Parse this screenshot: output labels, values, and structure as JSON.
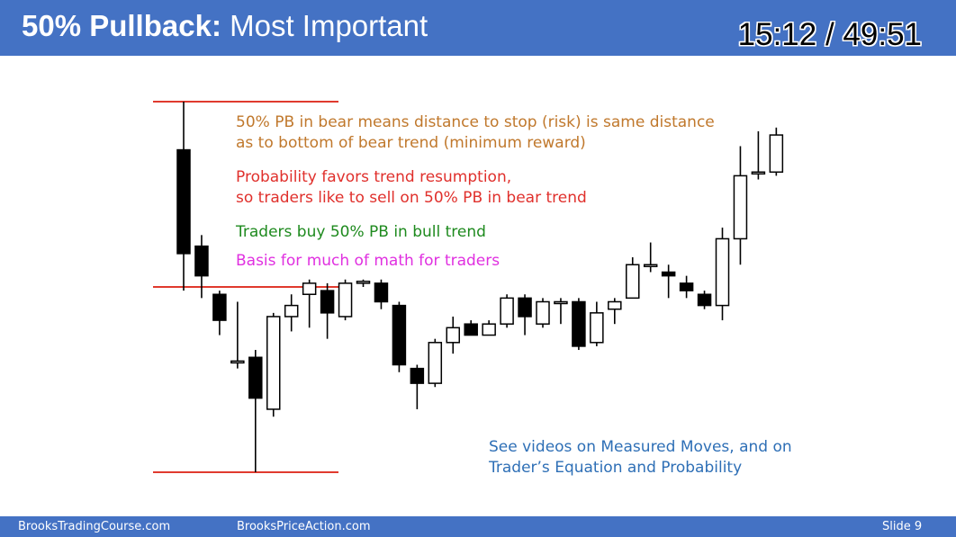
{
  "slide": {
    "title_bold": "50% Pullback:",
    "title_rest": " Most Important",
    "timer": "15:12 / 49:51",
    "notes": {
      "risk_line1": "50% PB in bear means distance to stop (risk) is same distance",
      "risk_line2": "as to bottom of bear trend (minimum reward)",
      "prob_line1": "Probability favors trend resumption,",
      "prob_line2": "so traders like to sell on 50% PB in bear trend",
      "bull_line": "Traders buy 50% PB in bull trend",
      "math_line": "Basis for much of math for traders",
      "videos_line1": "See videos on Measured Moves, and on",
      "videos_line2": "Trader’s Equation and Probability"
    }
  },
  "footer": {
    "left": "BrooksTradingCourse.com",
    "center": "BrooksPriceAction.com",
    "slide_number": "Slide  9"
  },
  "colors": {
    "accent_blue": "#4472c4",
    "level_line": "#e03a2e",
    "risk_text": "#c0782c",
    "prob_text": "#e0302c",
    "bull_text": "#1e8a1e",
    "math_text": "#e030e0",
    "videos_text": "#2e6fb6"
  },
  "chart_data": {
    "type": "candlestick",
    "horizontal_levels": [
      {
        "label": "",
        "value": 100
      },
      {
        "label": "",
        "value": 50
      },
      {
        "label": "",
        "value": 0
      }
    ],
    "candles": [
      {
        "o": 87,
        "h": 100,
        "l": 49,
        "c": 59
      },
      {
        "o": 61,
        "h": 64,
        "l": 47,
        "c": 53
      },
      {
        "o": 48,
        "h": 49,
        "l": 37,
        "c": 41
      },
      {
        "o": 30,
        "h": 46,
        "l": 28,
        "c": 30
      },
      {
        "o": 31,
        "h": 33,
        "l": 0,
        "c": 20
      },
      {
        "o": 17,
        "h": 43,
        "l": 15,
        "c": 42
      },
      {
        "o": 42,
        "h": 48,
        "l": 38,
        "c": 45
      },
      {
        "o": 48,
        "h": 52,
        "l": 39,
        "c": 51
      },
      {
        "o": 49,
        "h": 51,
        "l": 36,
        "c": 43
      },
      {
        "o": 42,
        "h": 52,
        "l": 41,
        "c": 51
      },
      {
        "o": 51,
        "h": 52,
        "l": 50,
        "c": 51.5
      },
      {
        "o": 51,
        "h": 52,
        "l": 44,
        "c": 46
      },
      {
        "o": 45,
        "h": 46,
        "l": 27,
        "c": 29
      },
      {
        "o": 28,
        "h": 29,
        "l": 17,
        "c": 24
      },
      {
        "o": 24,
        "h": 36,
        "l": 23,
        "c": 35
      },
      {
        "o": 35,
        "h": 42,
        "l": 32,
        "c": 39
      },
      {
        "o": 40,
        "h": 41,
        "l": 37,
        "c": 37
      },
      {
        "o": 37,
        "h": 41,
        "l": 37,
        "c": 40
      },
      {
        "o": 40,
        "h": 48,
        "l": 39,
        "c": 47
      },
      {
        "o": 47,
        "h": 48,
        "l": 37,
        "c": 42
      },
      {
        "o": 40,
        "h": 47,
        "l": 39,
        "c": 46
      },
      {
        "o": 46,
        "h": 47,
        "l": 40,
        "c": 46
      },
      {
        "o": 46,
        "h": 47,
        "l": 33,
        "c": 34
      },
      {
        "o": 35,
        "h": 46,
        "l": 34,
        "c": 43
      },
      {
        "o": 44,
        "h": 47,
        "l": 40,
        "c": 46
      },
      {
        "o": 47,
        "h": 58,
        "l": 47,
        "c": 56
      },
      {
        "o": 56,
        "h": 62,
        "l": 54,
        "c": 56
      },
      {
        "o": 54,
        "h": 56,
        "l": 47,
        "c": 53
      },
      {
        "o": 51,
        "h": 53,
        "l": 47,
        "c": 49
      },
      {
        "o": 48,
        "h": 49,
        "l": 44,
        "c": 45
      },
      {
        "o": 45,
        "h": 66,
        "l": 41,
        "c": 63
      },
      {
        "o": 63,
        "h": 88,
        "l": 56,
        "c": 80
      },
      {
        "o": 81,
        "h": 92,
        "l": 79,
        "c": 81
      },
      {
        "o": 81,
        "h": 93,
        "l": 80,
        "c": 91
      }
    ]
  }
}
